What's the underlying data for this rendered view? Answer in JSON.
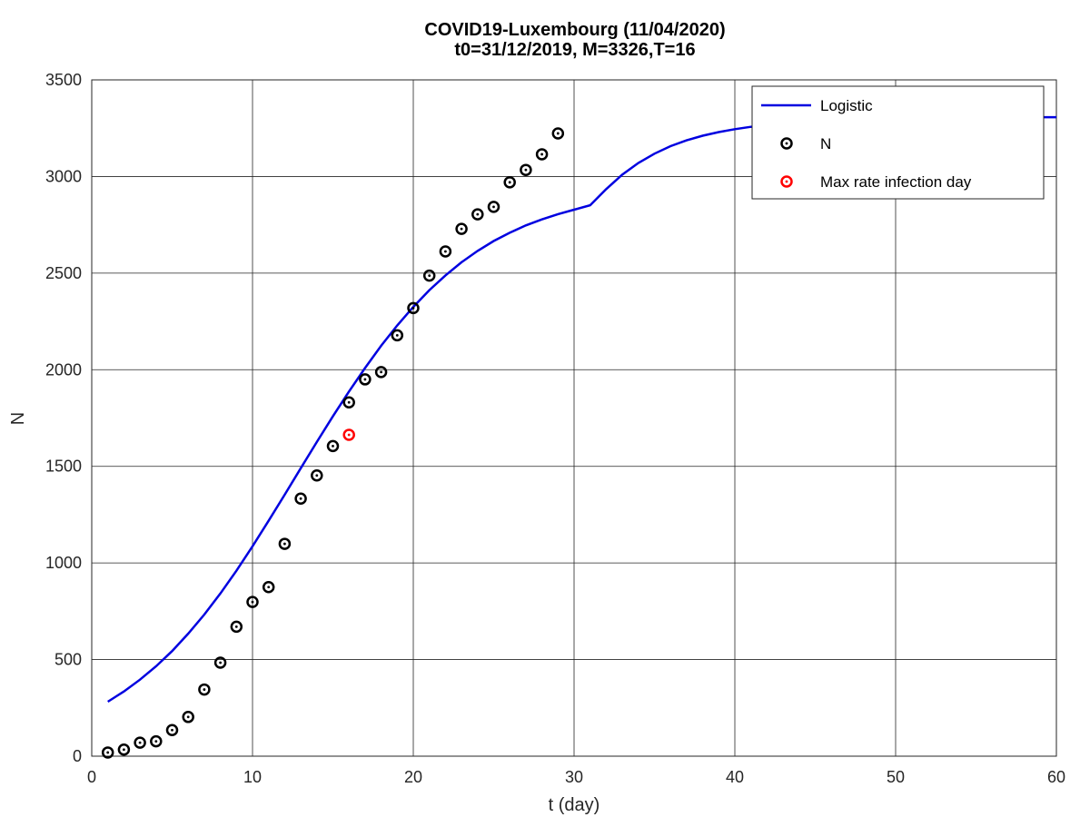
{
  "chart_data": {
    "type": "line",
    "title": "COVID19-Luxembourg (11/04/2020)",
    "subtitle": "t0=31/12/2019, M=3326,T=16",
    "xlabel": "t (day)",
    "ylabel": "N",
    "xlim": [
      0,
      60
    ],
    "ylim": [
      0,
      3500
    ],
    "xticks": [
      0,
      10,
      20,
      30,
      40,
      50,
      60
    ],
    "yticks": [
      0,
      500,
      1000,
      1500,
      2000,
      2500,
      3000,
      3500
    ],
    "grid": true,
    "legend_position": "top-right",
    "series": [
      {
        "name": "Logistic",
        "kind": "line",
        "color": "#0000e0",
        "x": [
          1,
          2,
          3,
          4,
          5,
          6,
          7,
          8,
          9,
          10,
          11,
          12,
          13,
          14,
          15,
          16,
          17,
          18,
          19,
          20,
          21,
          22,
          23,
          24,
          25,
          26,
          27,
          28,
          29,
          30,
          31,
          32,
          33,
          34,
          35,
          36,
          37,
          38,
          39,
          40,
          41,
          42,
          43,
          44,
          45,
          46,
          47,
          48,
          49,
          50,
          51,
          52,
          53,
          54,
          55,
          56,
          57,
          58,
          59,
          60
        ],
        "y": [
          282,
          335,
          396,
          465,
          544,
          634,
          733,
          842,
          960,
          1086,
          1218,
          1353,
          1490,
          1626,
          1759,
          1887,
          2009,
          2124,
          2229,
          2325,
          2412,
          2488,
          2556,
          2615,
          2666,
          2709,
          2747,
          2778,
          2805,
          2828,
          2851,
          2935,
          3010,
          3070,
          3118,
          3157,
          3187,
          3211,
          3230,
          3245,
          3257,
          3267,
          3275,
          3281,
          3286,
          3290,
          3293,
          3296,
          3298,
          3300,
          3301,
          3302,
          3303,
          3304,
          3305,
          3305,
          3306,
          3306,
          3307,
          3307
        ]
      },
      {
        "name": "N",
        "kind": "markers",
        "color": "#000000",
        "x": [
          1,
          2,
          3,
          4,
          5,
          6,
          7,
          8,
          9,
          10,
          11,
          12,
          13,
          14,
          15,
          16,
          17,
          18,
          19,
          20,
          21,
          22,
          23,
          24,
          25,
          26,
          27,
          28,
          29
        ],
        "y": [
          19,
          34,
          70,
          77,
          135,
          203,
          345,
          484,
          670,
          798,
          875,
          1099,
          1333,
          1453,
          1605,
          1831,
          1950,
          1988,
          2178,
          2319,
          2487,
          2612,
          2729,
          2804,
          2843,
          2970,
          3034,
          3115,
          3223
        ]
      },
      {
        "name": "Max rate infection day",
        "kind": "markers",
        "color": "#ff0000",
        "x": [
          16
        ],
        "y": [
          1663
        ]
      }
    ]
  }
}
